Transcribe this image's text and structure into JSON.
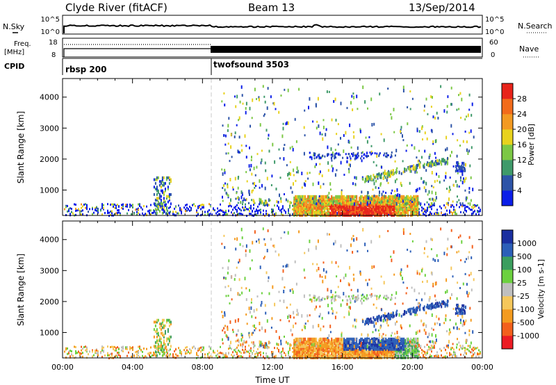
{
  "header": {
    "title": "Clyde River (fitACF)",
    "beam": "Beam 13",
    "date": "13/Sep/2014"
  },
  "noise_panel": {
    "left_label": "N.Sky",
    "right_label": "N.Search",
    "left_ticks": [
      "10^5",
      "10^0"
    ],
    "right_ticks": [
      "10^5",
      "10^0"
    ]
  },
  "freq_panel": {
    "left_label_1": "Freq.",
    "left_label_2": "[MHz]",
    "left_ticks": [
      "18",
      "8"
    ],
    "right_label": "Nave",
    "right_ticks": [
      "60",
      "0"
    ]
  },
  "cpid_panel": {
    "label": "CPID",
    "segments": [
      {
        "name": "rbsp 200",
        "start_h": 0
      },
      {
        "name": "twofsound 3503",
        "start_h": 8.5
      }
    ]
  },
  "colors": {
    "power_scale": [
      "#0b1ee8",
      "#2d54a8",
      "#3f9a6a",
      "#7cc845",
      "#e8d21d",
      "#f39a22",
      "#f26b1b",
      "#e8231a"
    ],
    "velocity_scale": [
      "#ec1c24",
      "#f3601d",
      "#f49b1f",
      "#f5c75b",
      "#bfbfbf",
      "#6cd13f",
      "#3b9e5e",
      "#2c5fb8",
      "#1a2fa0"
    ]
  },
  "chart_data": [
    {
      "type": "heatmap",
      "name": "power",
      "ylabel": "Slant Range [km]",
      "ylim": [
        180,
        4600
      ],
      "yticks": [
        "1000",
        "2000",
        "3000",
        "4000"
      ],
      "colorbar_label": "Power [dB]",
      "colorbar_ticks": [
        "4",
        "8",
        "12",
        "16",
        "20",
        "24",
        "28"
      ],
      "colorbar_range": [
        0,
        32
      ]
    },
    {
      "type": "heatmap",
      "name": "velocity",
      "ylabel": "Slant Range [km]",
      "ylim": [
        180,
        4600
      ],
      "yticks": [
        "1000",
        "2000",
        "3000",
        "4000"
      ],
      "xlabel": "Time UT",
      "xlim": [
        0,
        24
      ],
      "xticks": [
        "00:00",
        "04:00",
        "08:00",
        "12:00",
        "16:00",
        "20:00",
        "00:00"
      ],
      "colorbar_label": "Velocity [m s-1]",
      "colorbar_ticks": [
        "1000",
        "500",
        "100",
        "25",
        "-25",
        "-100",
        "-500",
        "-1000"
      ]
    }
  ]
}
